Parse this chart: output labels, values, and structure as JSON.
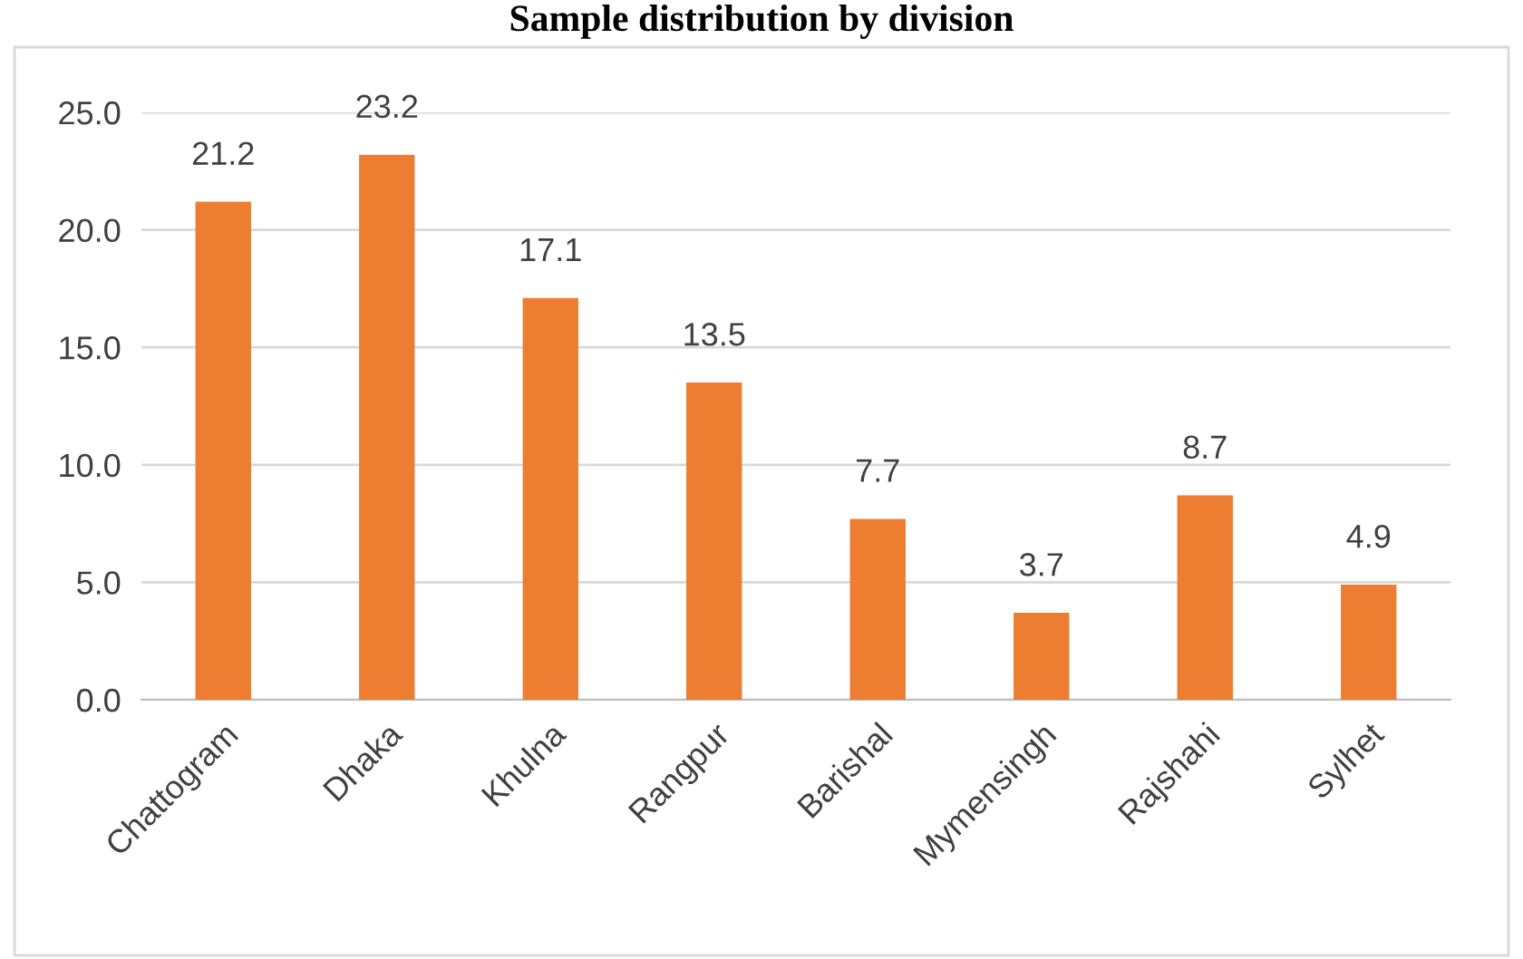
{
  "chart_data": {
    "type": "bar",
    "title": "Sample distribution by division",
    "categories": [
      "Chattogram",
      "Dhaka",
      "Khulna",
      "Rangpur",
      "Barishal",
      "Mymensingh",
      "Rajshahi",
      "Sylhet"
    ],
    "values": [
      21.2,
      23.2,
      17.1,
      13.5,
      7.7,
      3.7,
      8.7,
      4.9
    ],
    "color": "#ed7d31",
    "ylim": [
      0,
      25
    ],
    "yticks": [
      {
        "value": 0,
        "label": "0.0"
      },
      {
        "value": 5,
        "label": "5.0"
      },
      {
        "value": 10,
        "label": "10.0"
      },
      {
        "value": 15,
        "label": "15.0"
      },
      {
        "value": 20,
        "label": "20.0"
      },
      {
        "value": 25,
        "label": "25.0"
      }
    ],
    "grid": "y",
    "data_labels": true
  }
}
